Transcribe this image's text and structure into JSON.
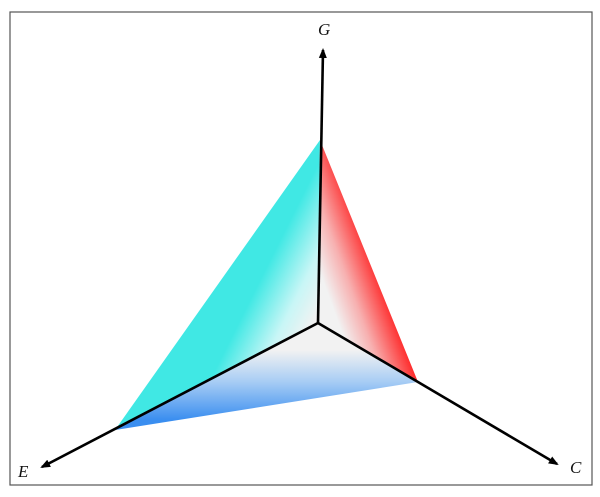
{
  "axes": {
    "g": "G",
    "c": "C",
    "e": "E"
  },
  "colors": {
    "face_ge": "#40e8e4",
    "face_gc": "#ff1a1a",
    "face_ec": "#3a8ef0",
    "axis": "#000000",
    "border": "#555555"
  }
}
